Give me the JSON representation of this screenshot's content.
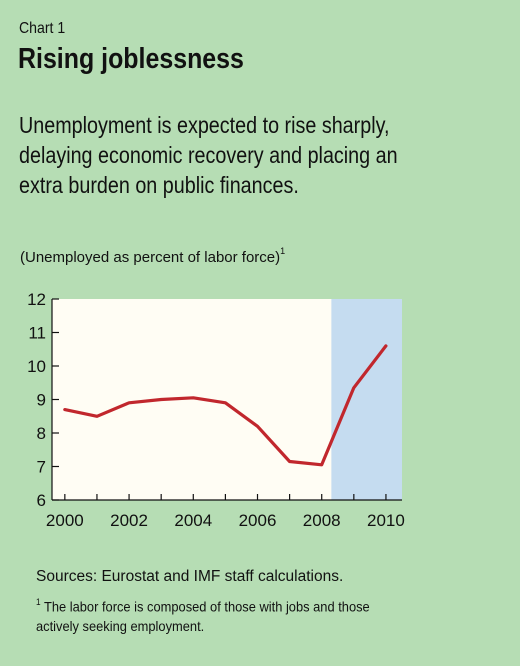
{
  "chart_label": "Chart 1",
  "title": "Rising joblessness",
  "subtitle_lines": [
    "Unemployment is expected to rise sharply,",
    "delaying economic recovery and placing an",
    "extra burden on public finances."
  ],
  "unit_label": "(Unemployed as percent of labor force)",
  "unit_footnote_mark": "1",
  "sources": "Sources: Eurostat and IMF staff calculations.",
  "footnote_mark": "1",
  "footnote_lines": [
    "The labor force is composed of those with jobs and those",
    "actively seeking employment."
  ],
  "colors": {
    "background": "#b6ddb4",
    "plot_background": "#fffdf4",
    "projection_shade": "#c5dcf0",
    "line": "#c1272d"
  },
  "chart_data": {
    "type": "line",
    "x": [
      2000,
      2001,
      2002,
      2003,
      2004,
      2005,
      2006,
      2007,
      2008,
      2009,
      2010
    ],
    "series": [
      {
        "values": [
          8.7,
          8.5,
          8.9,
          9.0,
          9.05,
          8.9,
          8.2,
          7.15,
          7.05,
          9.35,
          10.6
        ]
      }
    ],
    "xlim": [
      1999.6,
      2010.5
    ],
    "ylim": [
      6,
      12
    ],
    "x_ticks": [
      2000,
      2002,
      2004,
      2006,
      2008,
      2010
    ],
    "y_ticks": [
      6,
      7,
      8,
      9,
      10,
      11,
      12
    ],
    "projection_start": 2008.3,
    "grid": false
  }
}
